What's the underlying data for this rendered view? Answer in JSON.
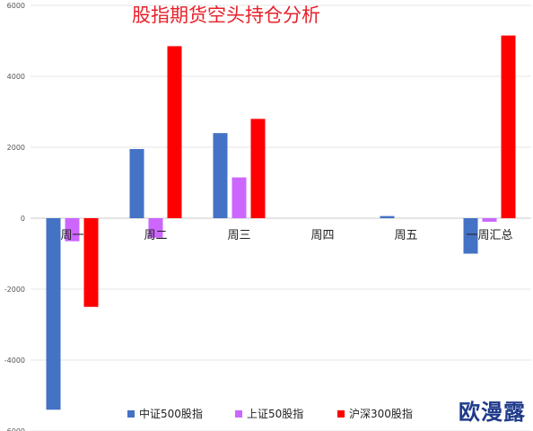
{
  "chart_data": {
    "type": "bar",
    "title": "股指期货空头持仓分析",
    "categories": [
      "周一",
      "周二",
      "周三",
      "周四",
      "周五",
      "一周汇总"
    ],
    "series": [
      {
        "name": "中证500股指",
        "color": "#4472C4",
        "values": [
          -5400,
          1950,
          2400,
          0,
          60,
          -1000
        ]
      },
      {
        "name": "上证50股指",
        "color": "#CC66FF",
        "values": [
          -650,
          -550,
          1150,
          0,
          0,
          -100
        ]
      },
      {
        "name": "沪深300股指",
        "color": "#FF0000",
        "values": [
          -2500,
          4850,
          2800,
          0,
          0,
          5150
        ]
      }
    ],
    "ylim": [
      -6000,
      6000
    ],
    "yticks": [
      -6000,
      -4000,
      -2000,
      0,
      2000,
      4000,
      6000
    ],
    "grid": true,
    "legend": "bottom",
    "title_color": "#E8202A"
  },
  "watermark": "欧漫露"
}
